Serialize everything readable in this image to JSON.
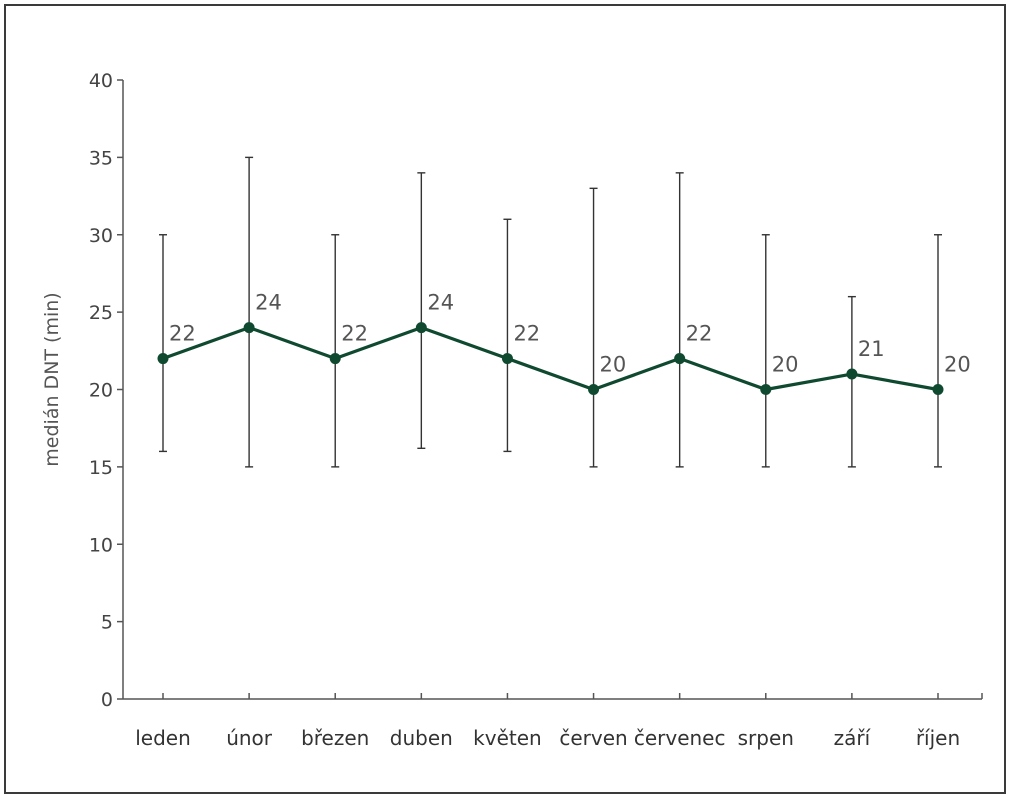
{
  "chart_data": {
    "type": "line",
    "title": "",
    "xlabel": "",
    "ylabel": "medián DNT (min)",
    "ylim": [
      0,
      40
    ],
    "yticks": [
      0,
      5,
      10,
      15,
      20,
      25,
      30,
      35,
      40
    ],
    "categories": [
      "leden",
      "únor",
      "březen",
      "duben",
      "květen",
      "červen",
      "červenec",
      "srpen",
      "září",
      "říjen"
    ],
    "series": [
      {
        "values": [
          22,
          24,
          22,
          24,
          22,
          20,
          22,
          20,
          21,
          20
        ],
        "error_low": [
          16,
          15,
          15,
          16.2,
          16,
          15,
          15,
          15,
          15,
          15
        ],
        "error_high": [
          30,
          35,
          30,
          34,
          31,
          33,
          34,
          30,
          26,
          30
        ],
        "labels": [
          "22",
          "24",
          "22",
          "24",
          "22",
          "20",
          "22",
          "20",
          "21",
          "20"
        ],
        "color": "#0f4a30"
      }
    ],
    "grid": false,
    "legend": "none",
    "error_bar_color": "#333333",
    "axis_color": "#555555"
  }
}
